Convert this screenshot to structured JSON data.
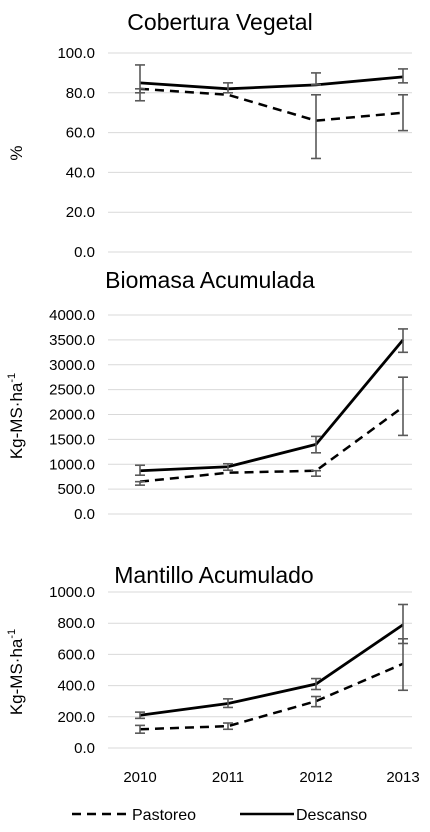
{
  "x_categories": [
    "2010",
    "2011",
    "2012",
    "2013"
  ],
  "legend": [
    {
      "name": "Pastoreo",
      "style": "dashed"
    },
    {
      "name": "Descanso",
      "style": "solid"
    }
  ],
  "colors": {
    "series": "#000000",
    "error_bars": "#595959",
    "background": "#ffffff"
  },
  "chart_data": [
    {
      "type": "line",
      "title": "Cobertura Vegetal",
      "ylabel": "%",
      "ylabel_superscript": "",
      "yticks": [
        "100.0",
        "80.0",
        "60.0",
        "40.0",
        "20.0",
        "0.0"
      ],
      "ylim": [
        0,
        100
      ],
      "categories": [
        "2010",
        "2011",
        "2012",
        "2013"
      ],
      "series": [
        {
          "name": "Pastoreo",
          "values": [
            82,
            79,
            66,
            70
          ],
          "err_low": [
            76,
            79,
            47,
            61
          ],
          "err_high": [
            82,
            79,
            79,
            79
          ]
        },
        {
          "name": "Descanso",
          "values": [
            85,
            82,
            84,
            88
          ],
          "err_low": [
            80,
            80,
            84,
            85
          ],
          "err_high": [
            94,
            85,
            90,
            92
          ]
        }
      ]
    },
    {
      "type": "line",
      "title": "Biomasa Acumulada",
      "ylabel": "Kg-MS·ha",
      "ylabel_superscript": "-1",
      "yticks": [
        "4000.0",
        "3500.0",
        "3000.0",
        "2500.0",
        "2000.0",
        "1500.0",
        "1000.0",
        "500.0",
        "0.0"
      ],
      "ylim": [
        0,
        4000
      ],
      "categories": [
        "2010",
        "2011",
        "2012",
        "2013"
      ],
      "series": [
        {
          "name": "Pastoreo",
          "values": [
            650,
            830,
            870,
            2150
          ],
          "err_low": [
            580,
            830,
            760,
            1580
          ],
          "err_high": [
            650,
            830,
            870,
            2750
          ]
        },
        {
          "name": "Descanso",
          "values": [
            870,
            950,
            1400,
            3500
          ],
          "err_low": [
            780,
            880,
            1230,
            3250
          ],
          "err_high": [
            980,
            1010,
            1560,
            3720
          ]
        }
      ]
    },
    {
      "type": "line",
      "title": "Mantillo Acumulado",
      "ylabel": "Kg-MS·ha",
      "ylabel_superscript": "-1",
      "yticks": [
        "1000.0",
        "800.0",
        "600.0",
        "400.0",
        "200.0",
        "0.0"
      ],
      "ylim": [
        0,
        1000
      ],
      "categories": [
        "2010",
        "2011",
        "2012",
        "2013"
      ],
      "series": [
        {
          "name": "Pastoreo",
          "values": [
            120,
            140,
            300,
            540
          ],
          "err_low": [
            95,
            120,
            265,
            370
          ],
          "err_high": [
            145,
            160,
            330,
            700
          ]
        },
        {
          "name": "Descanso",
          "values": [
            210,
            285,
            410,
            790
          ],
          "err_low": [
            190,
            260,
            375,
            670
          ],
          "err_high": [
            230,
            315,
            445,
            920
          ]
        }
      ]
    }
  ]
}
